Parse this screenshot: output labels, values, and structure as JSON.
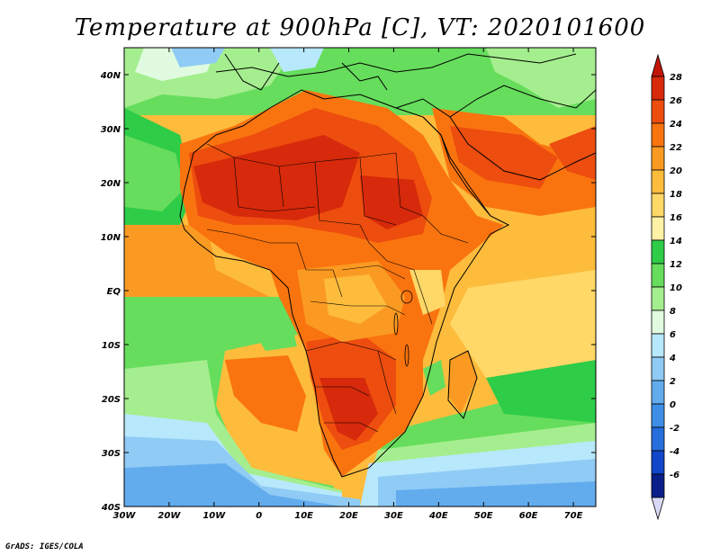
{
  "title": "Temperature at 900hPa [C], VT: 2020101600",
  "footer": "GrADS: IGES/COLA",
  "map": {
    "region": "Africa and surrounding oceans",
    "variable": "Temperature at 900hPa",
    "units": "C",
    "valid_time": "2020101600",
    "lon_range": [
      -30,
      75
    ],
    "lat_range": [
      -40,
      45
    ],
    "x_tick_labels": [
      "30W",
      "20W",
      "10W",
      "0",
      "10E",
      "20E",
      "30E",
      "40E",
      "50E",
      "60E",
      "70E"
    ],
    "x_tick_values": [
      -30,
      -20,
      -10,
      0,
      10,
      20,
      30,
      40,
      50,
      60,
      70
    ],
    "y_tick_labels": [
      "40N",
      "30N",
      "20N",
      "10N",
      "EQ",
      "10S",
      "20S",
      "30S",
      "40S"
    ],
    "y_tick_values": [
      40,
      30,
      20,
      10,
      0,
      -10,
      -20,
      -30,
      -40
    ]
  },
  "colorbar": {
    "labels": [
      "28",
      "26",
      "24",
      "22",
      "20",
      "18",
      "16",
      "14",
      "12",
      "10",
      "8",
      "6",
      "4",
      "2",
      "0",
      "-2",
      "-4",
      "-6"
    ],
    "colors": [
      "#d7290b",
      "#ed4d0e",
      "#f9740f",
      "#fb9a22",
      "#fdbc3c",
      "#ffd867",
      "#fff1a5",
      "#2fcc48",
      "#66dd5c",
      "#a5ee8f",
      "#e0fbe0",
      "#b8e8fc",
      "#8fcbf5",
      "#62acee",
      "#3e8ee6",
      "#266edc",
      "#1147c8",
      "#0a1f8a"
    ],
    "over_color": "#c21508",
    "under_color": "#d9d9f7"
  }
}
